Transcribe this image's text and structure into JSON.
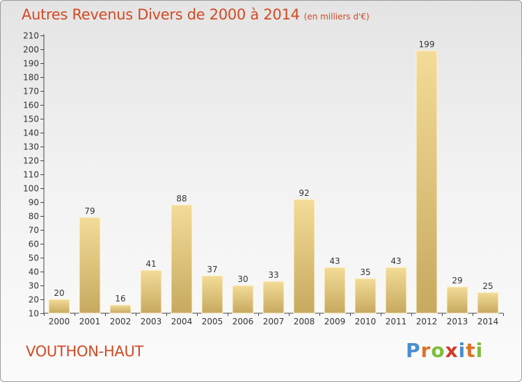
{
  "chart_data": {
    "type": "bar",
    "title": "Autres Revenus Divers de 2000 à 2014",
    "title_unit": "(en milliers d'€)",
    "categories": [
      "2000",
      "2001",
      "2002",
      "2003",
      "2004",
      "2005",
      "2006",
      "2007",
      "2008",
      "2009",
      "2010",
      "2011",
      "2012",
      "2013",
      "2014"
    ],
    "values": [
      20,
      79,
      16,
      41,
      88,
      37,
      30,
      33,
      92,
      43,
      35,
      43,
      199,
      29,
      25
    ],
    "ylim": [
      10,
      210
    ],
    "yticks": [
      10,
      20,
      30,
      40,
      50,
      60,
      70,
      80,
      90,
      100,
      110,
      120,
      130,
      140,
      150,
      160,
      170,
      180,
      190,
      200,
      210
    ],
    "grid": false,
    "bar_color_top": "#f3dc98",
    "bar_color_bottom": "#c7a95f"
  },
  "place_name": "VOUTHON-HAUT",
  "logo": {
    "letters": [
      "P",
      "r",
      "o",
      "x",
      "i",
      "t",
      "i"
    ],
    "colors": [
      "#4a8fd0",
      "#e0732a",
      "#7bbf3a",
      "#d23a2a",
      "#4a8fd0",
      "#e0732a",
      "#7bbf3a"
    ]
  },
  "colors": {
    "title": "#d24a24",
    "axis": "#444444"
  }
}
